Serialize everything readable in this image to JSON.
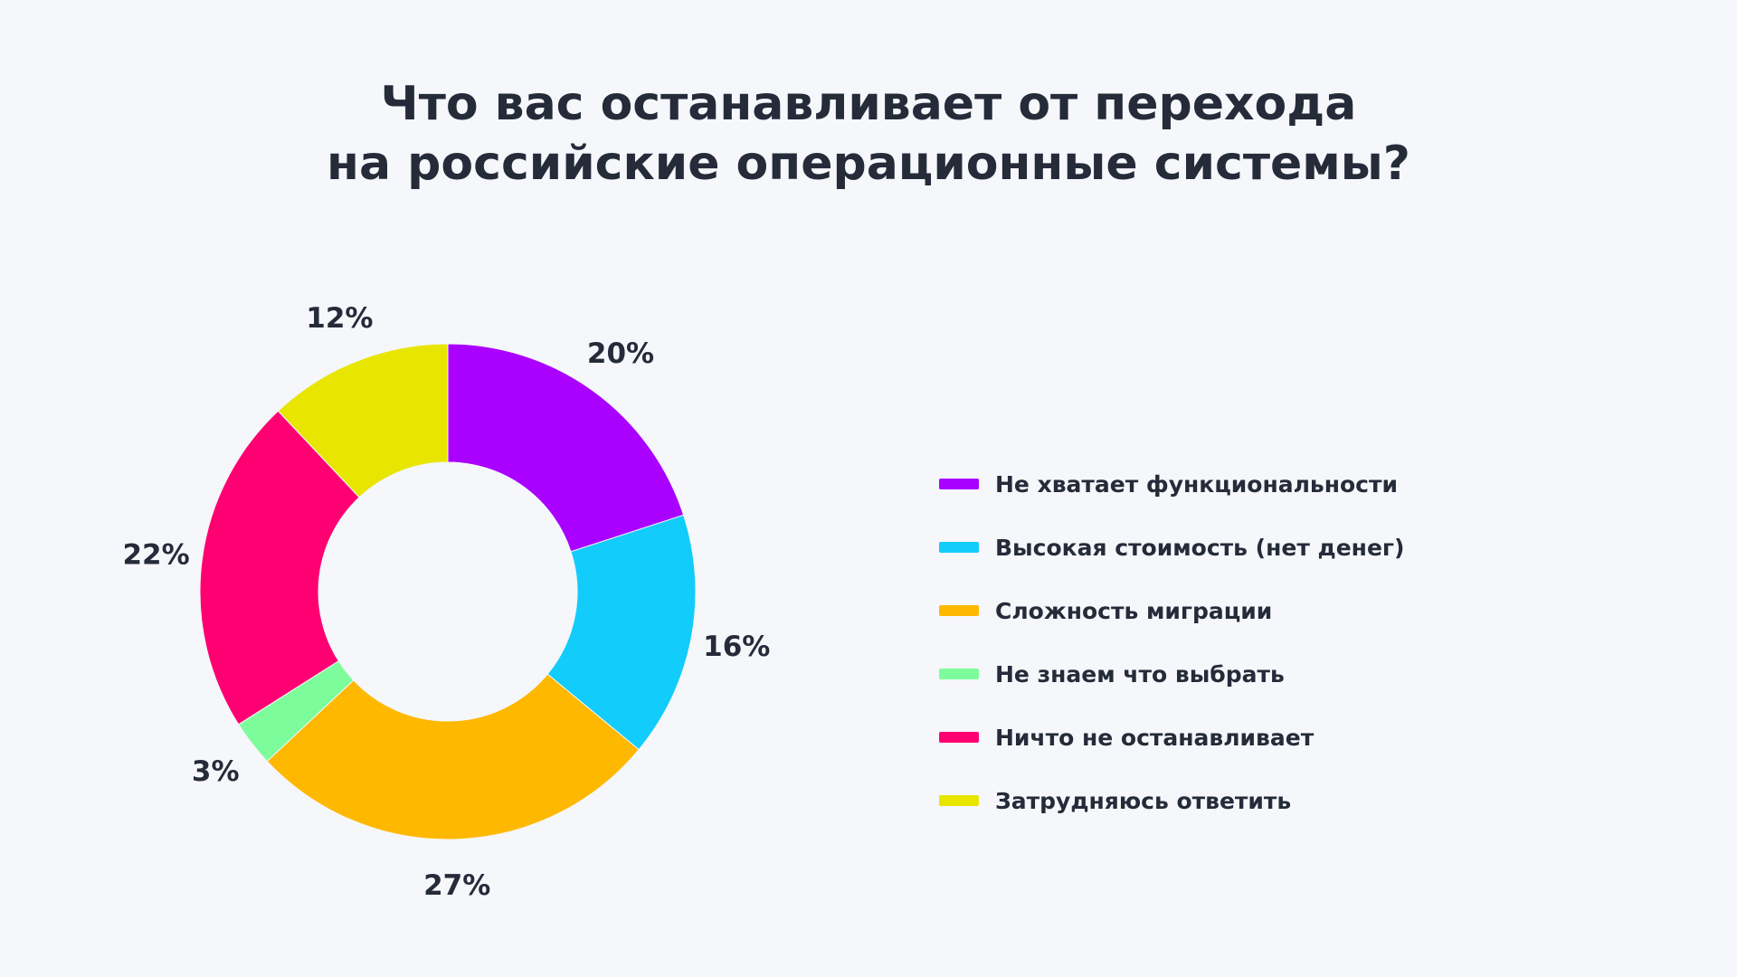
{
  "chart_data": {
    "type": "pie",
    "title_lines": [
      "Что вас останавливает от перехода",
      "на российские операционные системы?"
    ],
    "categories": [
      "Не хватает функциональности",
      "Высокая стоимость (нет денег)",
      "Сложность миграции",
      "Не знаем что выбрать",
      "Ничто не останавливает",
      "Затрудняюсь ответить"
    ],
    "values": [
      20,
      16,
      27,
      3,
      22,
      12
    ],
    "value_labels": [
      "20%",
      "16%",
      "27%",
      "3%",
      "22%",
      "12%"
    ],
    "colors": [
      "#aa00ff",
      "#12ccfb",
      "#ffb800",
      "#7dfc9b",
      "#ff0072",
      "#e8e600"
    ],
    "donut": true,
    "legend_position": "right"
  }
}
